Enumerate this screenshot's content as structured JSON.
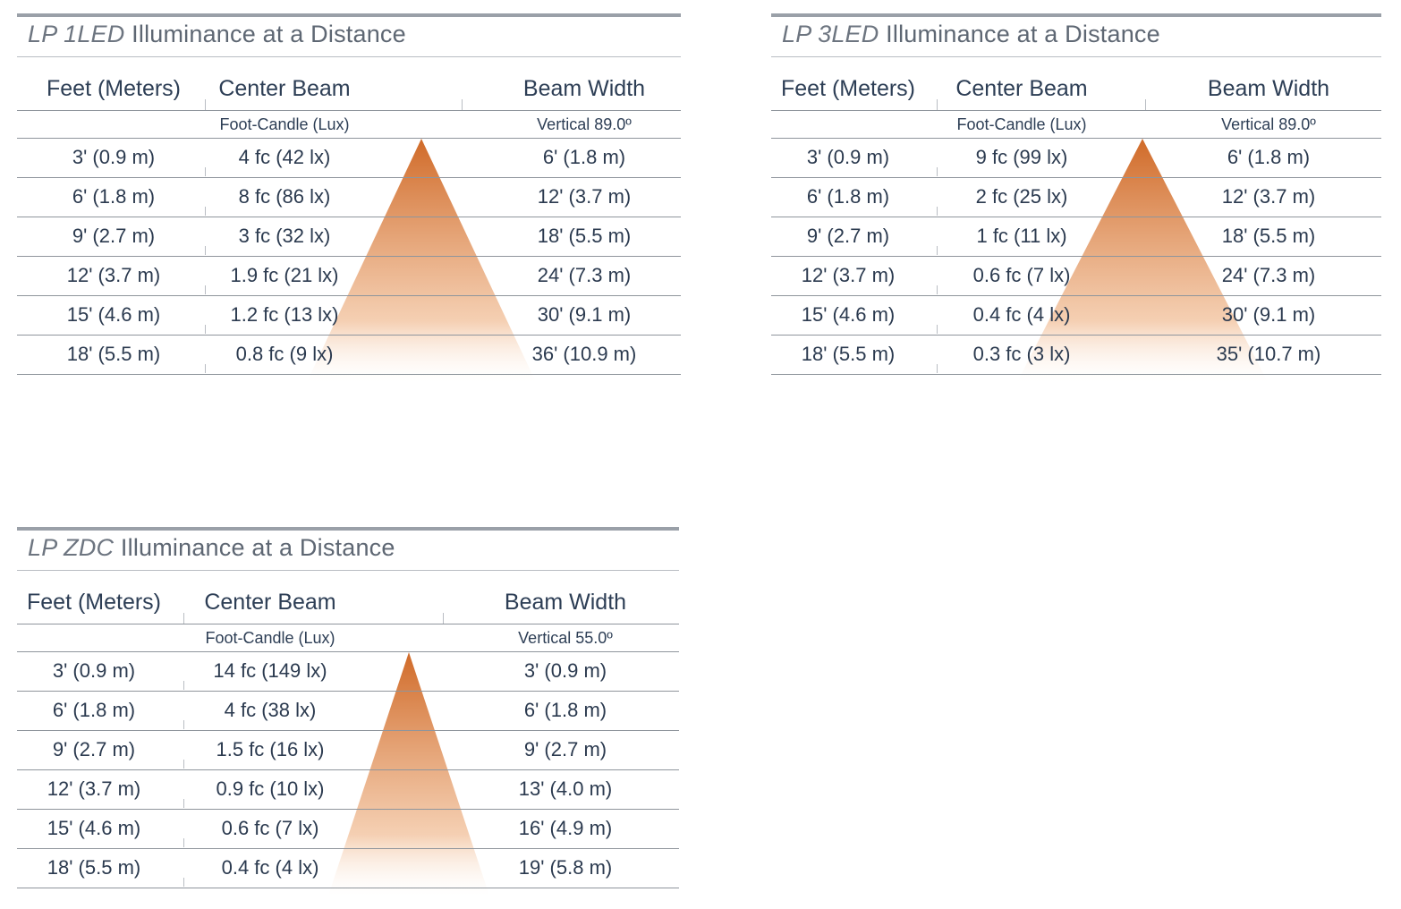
{
  "panels": [
    {
      "model": "LP 1LED",
      "title_suffix": "Illuminance at a Distance",
      "headers": {
        "distance": "Feet (Meters)",
        "center_beam": "Center Beam",
        "beam_width": "Beam Width"
      },
      "subheaders": {
        "center_beam": "Foot-Candle (Lux)",
        "beam_width": "Vertical 89.0º"
      },
      "rows": [
        {
          "distance": "3' (0.9 m)",
          "center_beam": "4 fc (42 lx)",
          "beam_width": "6' (1.8 m)"
        },
        {
          "distance": "6' (1.8 m)",
          "center_beam": "8 fc (86 lx)",
          "beam_width": "12' (3.7 m)"
        },
        {
          "distance": "9' (2.7 m)",
          "center_beam": "3 fc (32 lx)",
          "beam_width": "18' (5.5 m)"
        },
        {
          "distance": "12' (3.7 m)",
          "center_beam": "1.9 fc (21 lx)",
          "beam_width": "24' (7.3 m)"
        },
        {
          "distance": "15' (4.6 m)",
          "center_beam": "1.2 fc (13 lx)",
          "beam_width": "30' (9.1 m)"
        },
        {
          "distance": "18' (5.5 m)",
          "center_beam": "0.8 fc (9 lx)",
          "beam_width": "36' (10.9 m)"
        }
      ]
    },
    {
      "model": "LP 3LED",
      "title_suffix": "Illuminance at a Distance",
      "headers": {
        "distance": "Feet (Meters)",
        "center_beam": "Center Beam",
        "beam_width": "Beam Width"
      },
      "subheaders": {
        "center_beam": "Foot-Candle (Lux)",
        "beam_width": "Vertical 89.0º"
      },
      "rows": [
        {
          "distance": "3' (0.9 m)",
          "center_beam": "9 fc (99 lx)",
          "beam_width": "6' (1.8 m)"
        },
        {
          "distance": "6' (1.8 m)",
          "center_beam": "2 fc (25 lx)",
          "beam_width": "12' (3.7 m)"
        },
        {
          "distance": "9' (2.7 m)",
          "center_beam": "1 fc (11 lx)",
          "beam_width": "18' (5.5 m)"
        },
        {
          "distance": "12' (3.7 m)",
          "center_beam": "0.6 fc (7 lx)",
          "beam_width": "24' (7.3 m)"
        },
        {
          "distance": "15' (4.6 m)",
          "center_beam": "0.4 fc (4 lx)",
          "beam_width": "30' (9.1 m)"
        },
        {
          "distance": "18' (5.5 m)",
          "center_beam": "0.3 fc (3 lx)",
          "beam_width": "35' (10.7 m)"
        }
      ]
    },
    {
      "model": "LP ZDC",
      "title_suffix": "Illuminance at a Distance",
      "headers": {
        "distance": "Feet (Meters)",
        "center_beam": "Center Beam",
        "beam_width": "Beam Width"
      },
      "subheaders": {
        "center_beam": "Foot-Candle (Lux)",
        "beam_width": "Vertical 55.0º"
      },
      "rows": [
        {
          "distance": "3' (0.9 m)",
          "center_beam": "14 fc (149 lx)",
          "beam_width": "3' (0.9 m)"
        },
        {
          "distance": "6' (1.8 m)",
          "center_beam": "4 fc (38 lx)",
          "beam_width": "6' (1.8 m)"
        },
        {
          "distance": "9' (2.7 m)",
          "center_beam": "1.5 fc (16 lx)",
          "beam_width": "9' (2.7 m)"
        },
        {
          "distance": "12' (3.7 m)",
          "center_beam": "0.9 fc (10 lx)",
          "beam_width": "13' (4.0 m)"
        },
        {
          "distance": "15' (4.6 m)",
          "center_beam": "0.6 fc (7 lx)",
          "beam_width": "16' (4.9 m)"
        },
        {
          "distance": "18' (5.5 m)",
          "center_beam": "0.4 fc (4 lx)",
          "beam_width": "19' (5.8 m)"
        }
      ]
    }
  ],
  "colors": {
    "beam_top": "#d06a28",
    "beam_bottom": "#f3c7a5",
    "text": "#2b3a4f",
    "rule": "#8f959c",
    "title_rule": "#9aa0a8"
  }
}
